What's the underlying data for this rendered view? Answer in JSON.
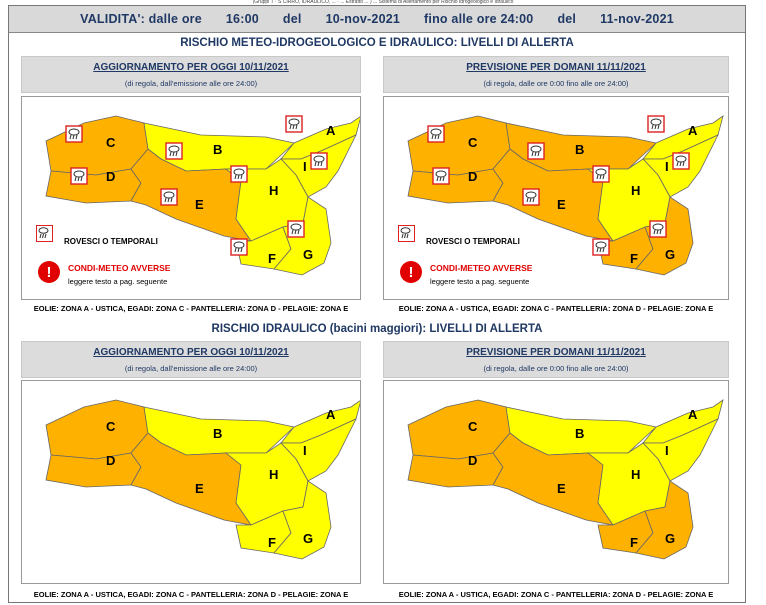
{
  "top_strip": "(Gruppi T · S CIRRO, IDRAULICO, ... · ... Estratto ... ) ... Sistema di Allertamento per Rischio Idrogeologico e Idraulico",
  "validita": {
    "label": "VALIDITA': dalle ore",
    "ora_da": "16:00",
    "del1": "del",
    "data_da": "10-nov-2021",
    "fino": "fino alle ore 24:00",
    "del2": "del",
    "data_a": "11-nov-2021"
  },
  "sections": [
    {
      "title": "RISCHIO METEO-IDROGEOLOGICO E IDRAULICO: LIVELLI DI ALLERTA",
      "panels": [
        {
          "header": "AGGIORNAMENTO PER OGGI 10/11/2021",
          "sub": "(di regola, dall'emissione alle ore 24:00)",
          "zones": {
            "A": "yellow",
            "B": "yellow",
            "C": "orange",
            "D": "orange",
            "E": "orange",
            "F": "yellow",
            "G": "yellow",
            "H": "yellow",
            "I": "yellow"
          }
        },
        {
          "header": "PREVISIONE PER DOMANI 11/11/2021",
          "sub": "(di regola, dalle ore 0:00 fino alle ore 24:00)",
          "zones": {
            "A": "yellow",
            "B": "orange",
            "C": "orange",
            "D": "orange",
            "E": "orange",
            "F": "orange",
            "G": "orange",
            "H": "yellow",
            "I": "yellow"
          }
        }
      ],
      "legend": {
        "rain_icon": "rain-storm-icon",
        "rain_label": "ROVESCI O TEMPORALI",
        "alarm_icon": "exclamation-icon",
        "alarm_title": "CONDI-METEO AVVERSE",
        "alarm_text": "leggere testo a pag. seguente"
      }
    },
    {
      "title": "RISCHIO IDRAULICO (bacini maggiori): LIVELLI DI ALLERTA",
      "panels": [
        {
          "header": "AGGIORNAMENTO PER OGGI 10/11/2021",
          "sub": "(di regola, dall'emissione alle ore 24:00)",
          "zones": {
            "A": "yellow",
            "B": "yellow",
            "C": "orange",
            "D": "orange",
            "E": "orange",
            "F": "yellow",
            "G": "yellow",
            "H": "yellow",
            "I": "yellow"
          }
        },
        {
          "header": "PREVISIONE PER DOMANI 11/11/2021",
          "sub": "(di regola, dalle ore 0:00 fino alle ore 24:00)",
          "zones": {
            "A": "yellow",
            "B": "yellow",
            "C": "orange",
            "D": "orange",
            "E": "orange",
            "F": "orange",
            "G": "orange",
            "H": "yellow",
            "I": "yellow"
          }
        }
      ]
    }
  ],
  "footer": "EOLIE: ZONA A - USTICA, EGADI: ZONA C - PANTELLERIA: ZONA D - PELAGIE: ZONA E",
  "colors": {
    "yellow": "#ffff00",
    "orange": "#ffb100",
    "border": "#777777",
    "header_bg": "#dcdcdc",
    "title": "#1f3864",
    "alarm": "#e00000"
  }
}
